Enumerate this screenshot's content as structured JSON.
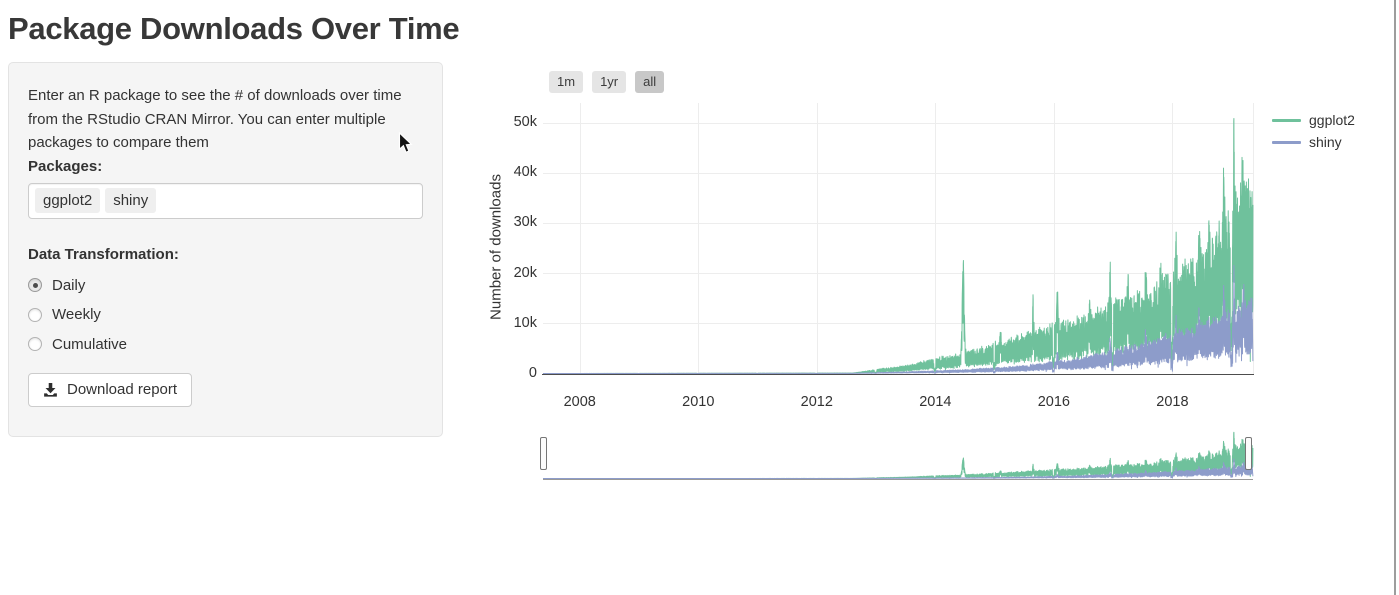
{
  "page": {
    "title": "Package Downloads Over Time"
  },
  "sidebar": {
    "description": "Enter an R package to see the # of downloads over time from the RStudio CRAN Mirror. You can enter multiple packages to compare them",
    "packages_label": "Packages:",
    "package_tags": [
      "ggplot2",
      "shiny"
    ],
    "transformation": {
      "label": "Data Transformation:",
      "options": [
        {
          "label": "Daily",
          "selected": true
        },
        {
          "label": "Weekly",
          "selected": false
        },
        {
          "label": "Cumulative",
          "selected": false
        }
      ]
    },
    "download_button": "Download report"
  },
  "main": {
    "range_buttons": [
      {
        "label": "1m",
        "active": false
      },
      {
        "label": "1yr",
        "active": false
      },
      {
        "label": "all",
        "active": true
      }
    ]
  },
  "chart_data": {
    "type": "line",
    "title": "",
    "xlabel": "",
    "ylabel": "Number of downloads",
    "xlim": [
      2007.38,
      2019.36
    ],
    "ylim": [
      0,
      52000
    ],
    "grid": true,
    "legend_position": "top-right",
    "x_ticks": [
      {
        "v": 2008,
        "label": "2008"
      },
      {
        "v": 2010,
        "label": "2010"
      },
      {
        "v": 2012,
        "label": "2012"
      },
      {
        "v": 2014,
        "label": "2014"
      },
      {
        "v": 2016,
        "label": "2016"
      },
      {
        "v": 2018,
        "label": "2018"
      }
    ],
    "y_ticks": [
      {
        "v": 0,
        "label": "0"
      },
      {
        "v": 10000,
        "label": "10k"
      },
      {
        "v": 20000,
        "label": "20k"
      },
      {
        "v": 30000,
        "label": "30k"
      },
      {
        "v": 40000,
        "label": "40k"
      },
      {
        "v": 50000,
        "label": "50k"
      }
    ],
    "series": [
      {
        "name": "ggplot2",
        "color": "#6fc19c",
        "anchors": [
          [
            2007.4,
            0
          ],
          [
            2012.6,
            80
          ],
          [
            2012.75,
            250
          ],
          [
            2013.0,
            650
          ],
          [
            2013.5,
            1200
          ],
          [
            2014.0,
            2300
          ],
          [
            2014.5,
            3300
          ],
          [
            2015.0,
            4700
          ],
          [
            2015.5,
            6000
          ],
          [
            2016.0,
            7600
          ],
          [
            2016.5,
            8700
          ],
          [
            2017.0,
            11000
          ],
          [
            2017.5,
            12800
          ],
          [
            2018.0,
            15500
          ],
          [
            2018.5,
            18500
          ],
          [
            2018.9,
            24000
          ],
          [
            2019.1,
            28500
          ],
          [
            2019.36,
            30000
          ]
        ],
        "spikes": [
          [
            2014.47,
            19000,
            6
          ],
          [
            2015.1,
            4500,
            3
          ],
          [
            2015.65,
            7500,
            3
          ],
          [
            2016.06,
            9000,
            4
          ],
          [
            2016.6,
            4500,
            3
          ],
          [
            2016.95,
            8500,
            4
          ],
          [
            2017.25,
            8500,
            3
          ],
          [
            2017.55,
            7500,
            3
          ],
          [
            2017.8,
            6000,
            3
          ],
          [
            2018.06,
            8000,
            4
          ],
          [
            2018.45,
            9000,
            4
          ],
          [
            2018.62,
            9000,
            3
          ],
          [
            2018.87,
            13000,
            5
          ],
          [
            2019.04,
            19000,
            4
          ],
          [
            2019.18,
            11000,
            3
          ]
        ]
      },
      {
        "name": "shiny",
        "color": "#8d9cca",
        "anchors": [
          [
            2007.4,
            0
          ],
          [
            2012.6,
            30
          ],
          [
            2013.0,
            140
          ],
          [
            2013.5,
            250
          ],
          [
            2014.0,
            430
          ],
          [
            2014.5,
            600
          ],
          [
            2015.0,
            900
          ],
          [
            2015.5,
            1200
          ],
          [
            2016.0,
            1900
          ],
          [
            2016.5,
            2500
          ],
          [
            2017.0,
            3600
          ],
          [
            2017.5,
            4700
          ],
          [
            2018.0,
            6200
          ],
          [
            2018.5,
            7800
          ],
          [
            2019.0,
            9800
          ],
          [
            2019.36,
            11500
          ]
        ],
        "spikes": [
          [
            2016.06,
            2500,
            3
          ],
          [
            2016.95,
            3000,
            3
          ],
          [
            2017.55,
            2800,
            3
          ],
          [
            2018.06,
            3500,
            3
          ],
          [
            2018.45,
            4000,
            3
          ],
          [
            2018.87,
            5500,
            4
          ],
          [
            2019.04,
            8500,
            3
          ],
          [
            2019.2,
            6500,
            3
          ]
        ]
      }
    ]
  }
}
